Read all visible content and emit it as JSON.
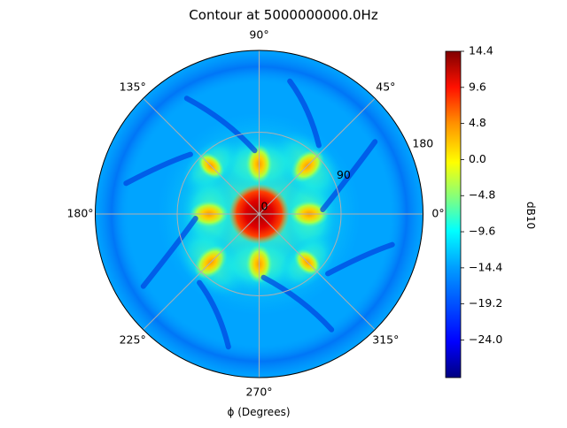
{
  "chart_data": {
    "type": "heatmap",
    "projection": "polar",
    "title": "Contour at 5000000000.0Hz",
    "xlabel": "$\\phi$ (Degrees)",
    "xlabel_display": "ϕ (Degrees)",
    "angular_ticks": [
      "0°",
      "45°",
      "90°",
      "135°",
      "180°",
      "225°",
      "270°",
      "315°"
    ],
    "radial_ticks": [
      "0",
      "90",
      "180"
    ],
    "radial_range": [
      0,
      180
    ],
    "grid": true,
    "colormap": "jet",
    "colorbar": {
      "label": "dB10",
      "range": [
        -29.0,
        14.4
      ],
      "ticks": [
        "14.4",
        "9.6",
        "4.8",
        "0.0",
        "−4.8",
        "−9.6",
        "−14.4",
        "−19.2",
        "−24.0"
      ],
      "position": "right"
    },
    "features": [
      {
        "kind": "peak",
        "theta_deg": 0,
        "r": 0,
        "value": 14.4
      },
      {
        "kind": "lobe",
        "theta_deg": 0,
        "r": 55,
        "value": 1.5
      },
      {
        "kind": "lobe",
        "theta_deg": 45,
        "r": 75,
        "value": 2.5
      },
      {
        "kind": "lobe",
        "theta_deg": 90,
        "r": 55,
        "value": 2.0
      },
      {
        "kind": "lobe",
        "theta_deg": 135,
        "r": 75,
        "value": -2.0
      },
      {
        "kind": "lobe",
        "theta_deg": 180,
        "r": 55,
        "value": 3.5
      },
      {
        "kind": "lobe",
        "theta_deg": 225,
        "r": 75,
        "value": 3.0
      },
      {
        "kind": "lobe",
        "theta_deg": 270,
        "r": 55,
        "value": 3.0
      },
      {
        "kind": "lobe",
        "theta_deg": 315,
        "r": 75,
        "value": -2.0
      },
      {
        "kind": "background",
        "value": -13.0
      }
    ]
  }
}
